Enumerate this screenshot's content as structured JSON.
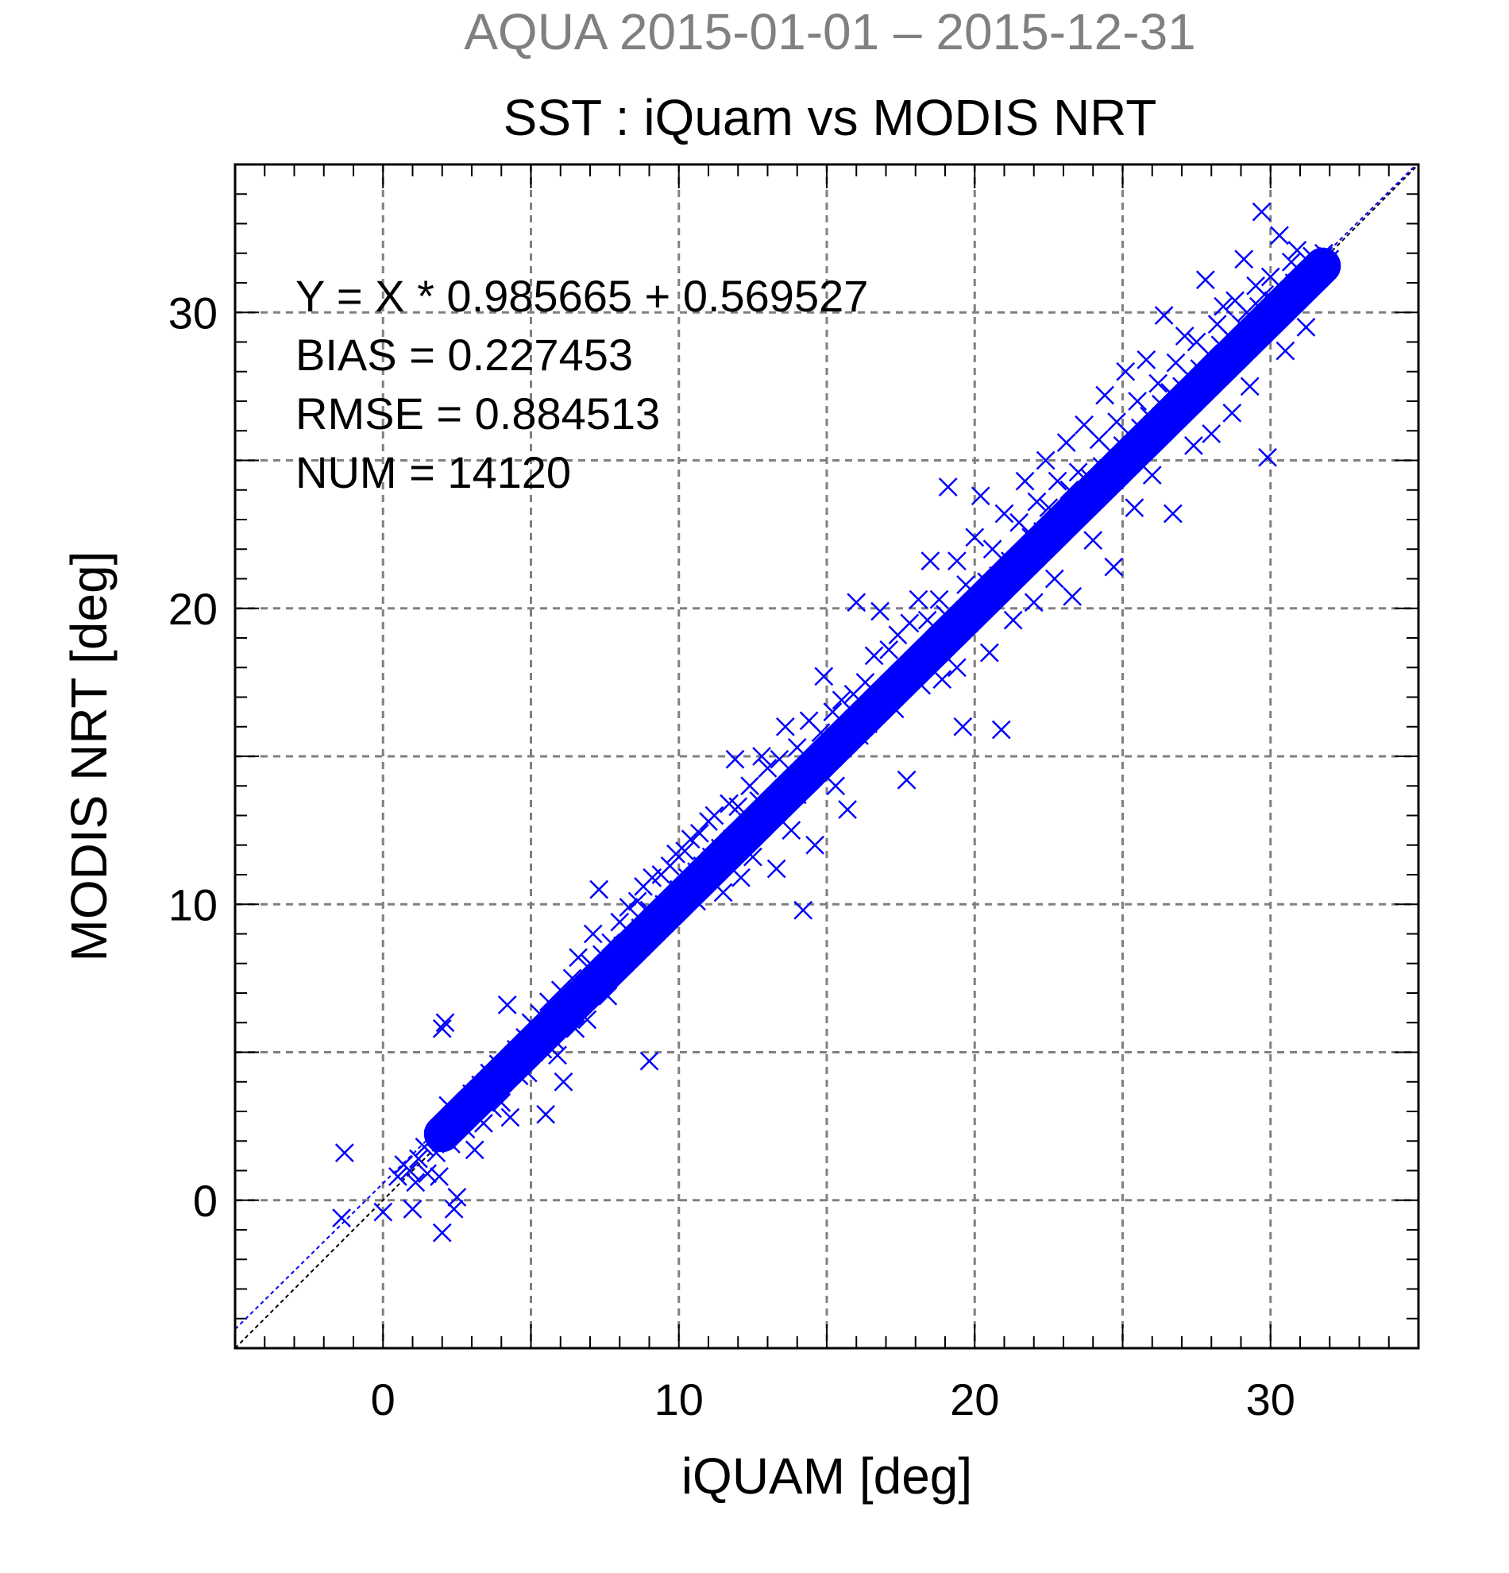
{
  "chart_data": {
    "type": "scatter",
    "suptitle": "AQUA  2015-01-01 – 2015-12-31",
    "title": "SST : iQuam vs MODIS NRT",
    "xlabel": "iQUAM [deg]",
    "ylabel": "MODIS NRT [deg]",
    "xlim": [
      -5,
      35
    ],
    "ylim": [
      -5,
      35
    ],
    "xticks": [
      0,
      10,
      20,
      30
    ],
    "yticks": [
      0,
      10,
      20,
      30
    ],
    "xtick_labels": [
      "0",
      "10",
      "20",
      "30"
    ],
    "ytick_labels": [
      "0",
      "10",
      "20",
      "30"
    ],
    "grid": true,
    "grid_step": 5,
    "stats": [
      "Y = X * 0.985665 + 0.569527",
      "BIAS = 0.227453",
      "RMSE = 0.884513",
      "NUM = 14120"
    ],
    "fit": {
      "slope": 0.985665,
      "intercept": 0.569527
    },
    "marker": "x",
    "colors": {
      "points": "#0000ff",
      "fit_line": "#0000ff",
      "identity_line": "#000000",
      "grid": "#808080",
      "suptitle": "#808080"
    },
    "series": [
      {
        "points": [
          [
            -1.3,
            1.6
          ],
          [
            -1.4,
            -0.6
          ],
          [
            0.0,
            -0.4
          ],
          [
            0.5,
            0.8
          ],
          [
            0.7,
            1.2
          ],
          [
            0.9,
            1.0
          ],
          [
            1.0,
            -0.3
          ],
          [
            1.1,
            0.6
          ],
          [
            1.2,
            1.4
          ],
          [
            1.4,
            1.8
          ],
          [
            1.5,
            0.9
          ],
          [
            1.7,
            2.1
          ],
          [
            1.8,
            1.6
          ],
          [
            1.9,
            0.8
          ],
          [
            2.0,
            -1.1
          ],
          [
            2.1,
            2.6
          ],
          [
            2.2,
            3.2
          ],
          [
            2.3,
            1.9
          ],
          [
            2.4,
            -0.3
          ],
          [
            2.5,
            0.1
          ],
          [
            2.0,
            5.8
          ],
          [
            2.1,
            6.0
          ],
          [
            2.6,
            3.0
          ],
          [
            2.8,
            2.4
          ],
          [
            3.0,
            3.6
          ],
          [
            3.1,
            1.7
          ],
          [
            3.3,
            3.9
          ],
          [
            3.4,
            2.6
          ],
          [
            3.6,
            4.3
          ],
          [
            3.7,
            3.1
          ],
          [
            3.9,
            4.6
          ],
          [
            4.0,
            3.3
          ],
          [
            4.2,
            6.6
          ],
          [
            4.3,
            2.8
          ],
          [
            4.5,
            5.1
          ],
          [
            4.6,
            4.2
          ],
          [
            4.8,
            5.5
          ],
          [
            4.9,
            4.3
          ],
          [
            5.0,
            6.0
          ],
          [
            5.1,
            5.0
          ],
          [
            5.3,
            6.3
          ],
          [
            5.4,
            5.1
          ],
          [
            5.5,
            2.9
          ],
          [
            5.6,
            6.7
          ],
          [
            5.8,
            5.4
          ],
          [
            5.9,
            4.9
          ],
          [
            6.0,
            7.1
          ],
          [
            6.1,
            4.0
          ],
          [
            6.2,
            6.3
          ],
          [
            6.4,
            7.5
          ],
          [
            6.5,
            5.8
          ],
          [
            6.6,
            8.2
          ],
          [
            6.8,
            7.3
          ],
          [
            6.9,
            6.1
          ],
          [
            7.0,
            8.0
          ],
          [
            7.1,
            9.0
          ],
          [
            7.2,
            7.2
          ],
          [
            7.3,
            10.5
          ],
          [
            7.4,
            8.3
          ],
          [
            7.6,
            6.9
          ],
          [
            7.7,
            8.7
          ],
          [
            7.9,
            7.8
          ],
          [
            8.0,
            9.4
          ],
          [
            8.1,
            8.6
          ],
          [
            8.3,
            9.9
          ],
          [
            8.4,
            8.3
          ],
          [
            8.6,
            10.1
          ],
          [
            8.7,
            9.2
          ],
          [
            8.8,
            10.6
          ],
          [
            9.0,
            9.8
          ],
          [
            9.0,
            4.7
          ],
          [
            9.1,
            10.9
          ],
          [
            9.3,
            9.6
          ],
          [
            9.4,
            11.0
          ],
          [
            9.5,
            10.0
          ],
          [
            9.7,
            11.3
          ],
          [
            9.8,
            10.2
          ],
          [
            9.9,
            11.7
          ],
          [
            10.0,
            10.5
          ],
          [
            10.2,
            11.8
          ],
          [
            10.3,
            10.9
          ],
          [
            10.4,
            12.2
          ],
          [
            10.6,
            11.1
          ],
          [
            10.7,
            12.4
          ],
          [
            10.8,
            11.3
          ],
          [
            11.0,
            12.8
          ],
          [
            11.1,
            11.6
          ],
          [
            11.2,
            13.0
          ],
          [
            11.4,
            11.9
          ],
          [
            11.5,
            10.4
          ],
          [
            11.7,
            13.4
          ],
          [
            11.8,
            12.2
          ],
          [
            11.9,
            14.9
          ],
          [
            12.0,
            13.3
          ],
          [
            12.1,
            10.9
          ],
          [
            12.3,
            12.8
          ],
          [
            12.4,
            14.0
          ],
          [
            12.5,
            11.6
          ],
          [
            12.7,
            13.5
          ],
          [
            12.8,
            15.0
          ],
          [
            12.9,
            12.9
          ],
          [
            13.0,
            14.6
          ],
          [
            13.2,
            13.3
          ],
          [
            13.3,
            11.2
          ],
          [
            13.4,
            14.9
          ],
          [
            13.6,
            16.0
          ],
          [
            13.7,
            14.0
          ],
          [
            13.8,
            12.5
          ],
          [
            14.0,
            15.3
          ],
          [
            14.1,
            14.3
          ],
          [
            14.2,
            9.8
          ],
          [
            14.4,
            16.2
          ],
          [
            14.5,
            14.6
          ],
          [
            14.6,
            12.0
          ],
          [
            14.8,
            15.8
          ],
          [
            14.9,
            17.7
          ],
          [
            15.0,
            15.0
          ],
          [
            15.2,
            16.5
          ],
          [
            15.3,
            14.0
          ],
          [
            15.5,
            16.9
          ],
          [
            15.6,
            15.4
          ],
          [
            15.7,
            13.2
          ],
          [
            15.9,
            17.1
          ],
          [
            16.0,
            20.2
          ],
          [
            16.1,
            15.7
          ],
          [
            16.3,
            17.5
          ],
          [
            16.4,
            16.1
          ],
          [
            16.6,
            18.4
          ],
          [
            16.7,
            16.5
          ],
          [
            16.8,
            19.9
          ],
          [
            17.0,
            17.0
          ],
          [
            17.1,
            18.6
          ],
          [
            17.3,
            16.6
          ],
          [
            17.4,
            19.1
          ],
          [
            17.5,
            17.6
          ],
          [
            17.7,
            14.2
          ],
          [
            17.8,
            19.5
          ],
          [
            18.0,
            18.2
          ],
          [
            18.1,
            20.3
          ],
          [
            18.2,
            17.4
          ],
          [
            18.4,
            19.6
          ],
          [
            18.5,
            21.6
          ],
          [
            18.6,
            18.6
          ],
          [
            18.8,
            20.3
          ],
          [
            18.9,
            17.6
          ],
          [
            19.0,
            19.8
          ],
          [
            19.1,
            24.1
          ],
          [
            19.3,
            19.2
          ],
          [
            19.4,
            21.6
          ],
          [
            19.6,
            16.0
          ],
          [
            19.7,
            20.8
          ],
          [
            19.8,
            19.5
          ],
          [
            20.0,
            22.4
          ],
          [
            20.1,
            20.1
          ],
          [
            20.2,
            23.8
          ],
          [
            20.4,
            20.9
          ],
          [
            20.5,
            18.5
          ],
          [
            20.6,
            22.0
          ],
          [
            20.8,
            21.1
          ],
          [
            20.9,
            15.9
          ],
          [
            21.0,
            23.2
          ],
          [
            21.2,
            21.6
          ],
          [
            21.3,
            19.6
          ],
          [
            21.5,
            22.9
          ],
          [
            21.6,
            21.8
          ],
          [
            21.7,
            24.3
          ],
          [
            21.9,
            22.4
          ],
          [
            22.0,
            20.2
          ],
          [
            22.1,
            23.6
          ],
          [
            22.3,
            22.6
          ],
          [
            22.4,
            25.0
          ],
          [
            22.5,
            23.4
          ],
          [
            22.7,
            21.0
          ],
          [
            22.8,
            24.3
          ],
          [
            22.9,
            23.1
          ],
          [
            23.1,
            25.6
          ],
          [
            23.2,
            24.0
          ],
          [
            23.3,
            20.4
          ],
          [
            23.5,
            24.6
          ],
          [
            23.6,
            23.5
          ],
          [
            23.7,
            26.2
          ],
          [
            23.9,
            24.4
          ],
          [
            24.0,
            22.3
          ],
          [
            24.2,
            25.7
          ],
          [
            24.3,
            24.8
          ],
          [
            24.4,
            27.2
          ],
          [
            24.6,
            25.3
          ],
          [
            24.7,
            21.4
          ],
          [
            24.8,
            26.3
          ],
          [
            25.0,
            25.5
          ],
          [
            25.1,
            28.0
          ],
          [
            25.2,
            25.9
          ],
          [
            25.4,
            23.4
          ],
          [
            25.5,
            27.0
          ],
          [
            25.6,
            26.1
          ],
          [
            25.8,
            28.4
          ],
          [
            25.9,
            26.5
          ],
          [
            26.0,
            24.5
          ],
          [
            26.2,
            27.6
          ],
          [
            26.3,
            26.9
          ],
          [
            26.4,
            29.9
          ],
          [
            26.6,
            27.3
          ],
          [
            26.7,
            23.2
          ],
          [
            26.8,
            28.3
          ],
          [
            27.0,
            27.5
          ],
          [
            27.1,
            29.2
          ],
          [
            27.2,
            27.9
          ],
          [
            27.4,
            25.5
          ],
          [
            27.5,
            29.0
          ],
          [
            27.6,
            28.1
          ],
          [
            27.8,
            31.1
          ],
          [
            27.9,
            28.6
          ],
          [
            28.0,
            25.9
          ],
          [
            28.2,
            29.6
          ],
          [
            28.3,
            28.9
          ],
          [
            28.4,
            30.2
          ],
          [
            28.6,
            29.2
          ],
          [
            28.7,
            26.6
          ],
          [
            28.8,
            30.4
          ],
          [
            29.0,
            29.6
          ],
          [
            29.1,
            31.8
          ],
          [
            29.2,
            30.0
          ],
          [
            29.3,
            27.5
          ],
          [
            29.5,
            30.9
          ],
          [
            29.6,
            30.2
          ],
          [
            29.7,
            33.4
          ],
          [
            29.8,
            30.6
          ],
          [
            29.9,
            25.1
          ],
          [
            30.0,
            31.2
          ],
          [
            30.1,
            30.4
          ],
          [
            30.3,
            32.6
          ],
          [
            30.4,
            30.8
          ],
          [
            30.5,
            28.7
          ],
          [
            30.7,
            31.7
          ],
          [
            30.8,
            31.0
          ],
          [
            30.9,
            32.1
          ],
          [
            31.1,
            31.3
          ],
          [
            31.2,
            29.5
          ],
          [
            31.4,
            31.9
          ],
          [
            31.6,
            31.5
          ],
          [
            31.8,
            32.0
          ],
          [
            32.0,
            31.8
          ],
          [
            19.4,
            18.0
          ],
          [
            14.0,
            13.7
          ],
          [
            10.6,
            10.1
          ],
          [
            8.9,
            9.1
          ],
          [
            6.3,
            6.6
          ],
          [
            4.1,
            4.5
          ],
          [
            3.0,
            3.3
          ],
          [
            2.4,
            2.8
          ]
        ]
      }
    ]
  }
}
